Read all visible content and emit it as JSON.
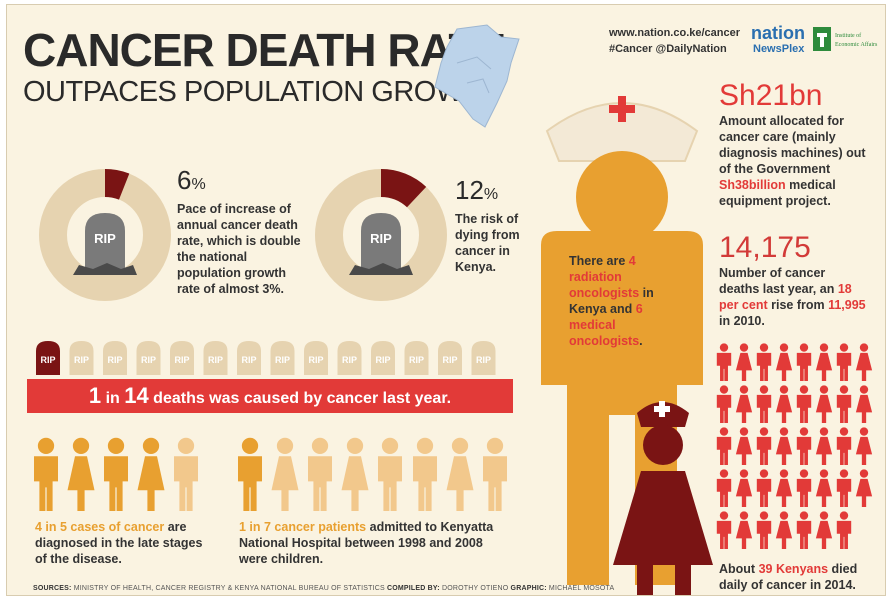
{
  "title": {
    "line1": "CANCER DEATH RATE",
    "line2": "OUTPACES POPULATION GROWTH"
  },
  "header": {
    "site": "www.nation.co.ke/cancer",
    "social": "#Cancer @DailyNation",
    "brand_nation": "nation",
    "brand_newsplex": "NewsPlex",
    "brand_iea": "Institute of Economic Affairs"
  },
  "stats": {
    "increase": {
      "value": "6",
      "unit": "%",
      "text": "Pace of increase of annual cancer death rate, which is double the national population growth rate of almost 3%.",
      "fraction": 0.06
    },
    "risk": {
      "value": "12",
      "unit": "%",
      "text": "The risk of dying from cancer in Kenya.",
      "fraction": 0.12
    },
    "rip_label": "RIP",
    "one_in_14": {
      "pre": "1",
      "mid": " in ",
      "num": "14",
      "post": " deaths was caused by cancer last year."
    },
    "late_stage": {
      "highlight": "4 in 5 cases of cancer",
      "text": " are diagnosed in the late stages of the disease."
    },
    "children": {
      "highlight": "1 in 7 cancer patients",
      "text": " admitted to Kenyatta National Hospital between 1998 and 2008 were children."
    },
    "oncologists": {
      "t1": "There are ",
      "h1": "4 radiation oncologists",
      "t2": " in Kenya and ",
      "h2": "6 medical oncologists",
      "t3": "."
    },
    "budget": {
      "value": "Sh21bn",
      "t1": "Amount allocated for cancer care (mainly diagnosis machines) out of the Government ",
      "h1": "Sh38billion",
      "t2": " medical equipment project."
    },
    "deaths": {
      "value": "14,175",
      "t1": "Number of cancer deaths last year, an ",
      "h1": "18 per cent",
      "t2": " rise from ",
      "h2": "11,995",
      "t3": " in 2010."
    },
    "daily": {
      "t1": "About ",
      "h1": "39 Kenyans",
      "t2": " died daily of cancer in 2014."
    }
  },
  "sources": {
    "label1": "SOURCES:",
    "text1": " MINISTRY OF HEALTH, CANCER REGISTRY & KENYA NATIONAL BUREAU OF STATISTICS ",
    "label2": "COMPILED BY:",
    "text2": " DOROTHY OTIENO ",
    "label3": "GRAPHIC:",
    "text3": " MICHAEL MOSOTA"
  },
  "colors": {
    "red": "#e23a38",
    "dark_red": "#7a1414",
    "orange": "#e8a030",
    "beige": "#e6d3b0",
    "light_orange": "#f2c88c"
  }
}
